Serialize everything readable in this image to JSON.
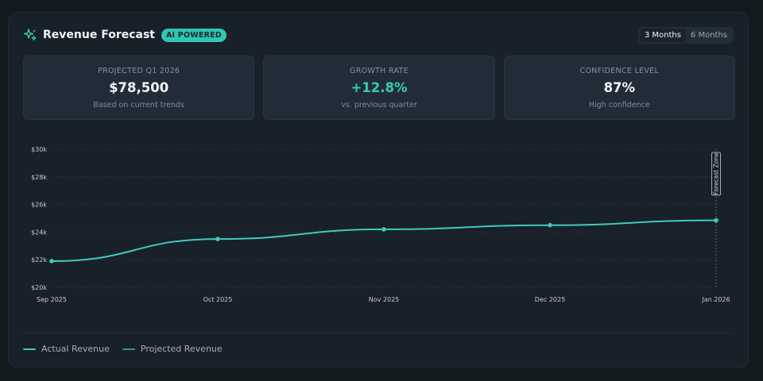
{
  "header": {
    "title": "Revenue Forecast",
    "badge": "AI POWERED",
    "icon": "sparkles-icon",
    "toggle": [
      "3 Months",
      "6 Months"
    ],
    "toggle_active": "3 Months"
  },
  "stats": [
    {
      "label": "PROJECTED Q1 2026",
      "value": "$78,500",
      "sub": "Based on current trends"
    },
    {
      "label": "GROWTH RATE",
      "value": "+12.8%",
      "sub": "vs. previous quarter"
    },
    {
      "label": "CONFIDENCE LEVEL",
      "value": "87%",
      "sub": "High confidence"
    }
  ],
  "colors": {
    "accent": "#2fc6b2",
    "actual": "#3ecbbd",
    "projected": "#2a9a8c",
    "positive": "#34cdb0",
    "card_bg": "#182029",
    "page_bg": "#111b1d"
  },
  "chart_data": {
    "type": "line",
    "categories": [
      "Sep 2025",
      "Oct 2025",
      "Nov 2025",
      "Dec 2025",
      "Jan 2026"
    ],
    "series": [
      {
        "name": "Actual Revenue",
        "values": [
          21900,
          23500,
          24200,
          24500,
          24850
        ]
      }
    ],
    "ylim": [
      20000,
      30000
    ],
    "yticks": [
      20000,
      22000,
      24000,
      26000,
      28000,
      30000
    ],
    "ytick_labels": [
      "$20k",
      "$22k",
      "$24k",
      "$26k",
      "$28k",
      "$30k"
    ],
    "annotations": [
      {
        "text": "Forecast Zone",
        "at": "Jan 2026"
      }
    ],
    "grid": true
  },
  "legend": [
    "Actual Revenue",
    "Projected Revenue"
  ]
}
